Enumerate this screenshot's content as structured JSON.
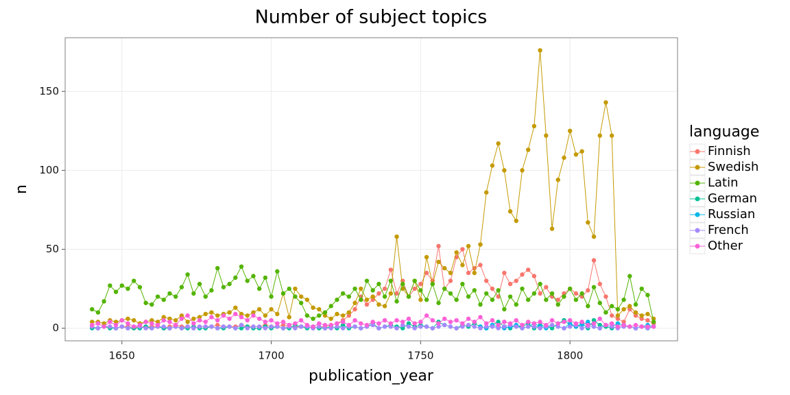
{
  "chart_data": {
    "type": "line",
    "title": "Number of subject topics",
    "x_label": "publication_year",
    "y_label": "n",
    "legend_title": "language",
    "xlim": [
      1631,
      1836
    ],
    "ylim": [
      -8,
      184
    ],
    "xticks": [
      1650,
      1700,
      1750,
      1800
    ],
    "yticks": [
      0,
      50,
      100,
      150
    ],
    "grid": true,
    "legend_position": "right",
    "x": [
      1640,
      1642,
      1644,
      1646,
      1648,
      1650,
      1652,
      1654,
      1656,
      1658,
      1660,
      1662,
      1664,
      1666,
      1668,
      1670,
      1672,
      1674,
      1676,
      1678,
      1680,
      1682,
      1684,
      1686,
      1688,
      1690,
      1692,
      1694,
      1696,
      1698,
      1700,
      1702,
      1704,
      1706,
      1708,
      1710,
      1712,
      1714,
      1716,
      1718,
      1720,
      1722,
      1724,
      1726,
      1728,
      1730,
      1732,
      1734,
      1736,
      1738,
      1740,
      1742,
      1744,
      1746,
      1748,
      1750,
      1752,
      1754,
      1756,
      1758,
      1760,
      1762,
      1764,
      1766,
      1768,
      1770,
      1772,
      1774,
      1776,
      1778,
      1780,
      1782,
      1784,
      1786,
      1788,
      1790,
      1792,
      1794,
      1796,
      1798,
      1800,
      1802,
      1804,
      1806,
      1808,
      1810,
      1812,
      1814,
      1816,
      1818,
      1820,
      1822,
      1824,
      1826,
      1828
    ],
    "series": [
      {
        "name": "Finnish",
        "color": "#F8766D",
        "values": [
          1,
          0,
          1,
          1,
          0,
          1,
          1,
          0,
          1,
          1,
          1,
          1,
          0,
          1,
          2,
          1,
          1,
          0,
          1,
          1,
          1,
          2,
          1,
          1,
          1,
          2,
          1,
          1,
          1,
          2,
          1,
          1,
          2,
          1,
          1,
          1,
          1,
          0,
          1,
          1,
          2,
          3,
          5,
          8,
          12,
          20,
          15,
          18,
          22,
          25,
          37,
          22,
          30,
          20,
          25,
          28,
          35,
          30,
          52,
          25,
          30,
          45,
          50,
          35,
          38,
          40,
          30,
          25,
          20,
          35,
          28,
          30,
          34,
          37,
          33,
          22,
          26,
          20,
          18,
          22,
          25,
          22,
          20,
          24,
          43,
          28,
          20,
          8,
          6,
          4,
          12,
          8,
          6,
          5,
          3
        ]
      },
      {
        "name": "Swedish",
        "color": "#C49A00",
        "values": [
          4,
          4,
          3,
          5,
          4,
          5,
          6,
          5,
          3,
          4,
          5,
          4,
          7,
          6,
          5,
          8,
          4,
          6,
          7,
          9,
          10,
          8,
          9,
          10,
          13,
          9,
          8,
          10,
          12,
          8,
          12,
          9,
          22,
          7,
          25,
          20,
          18,
          13,
          12,
          8,
          6,
          9,
          8,
          10,
          16,
          25,
          18,
          20,
          15,
          14,
          22,
          58,
          25,
          20,
          30,
          18,
          45,
          28,
          42,
          38,
          35,
          48,
          40,
          52,
          35,
          53,
          86,
          103,
          117,
          100,
          74,
          68,
          100,
          113,
          128,
          176,
          122,
          63,
          94,
          108,
          125,
          110,
          112,
          67,
          58,
          122,
          143,
          122,
          8,
          12,
          14,
          10,
          8,
          9,
          6
        ]
      },
      {
        "name": "Latin",
        "color": "#53B400",
        "values": [
          12,
          10,
          17,
          27,
          23,
          27,
          25,
          30,
          26,
          16,
          15,
          20,
          18,
          22,
          20,
          26,
          34,
          22,
          28,
          20,
          24,
          38,
          26,
          28,
          32,
          39,
          30,
          33,
          25,
          32,
          20,
          36,
          22,
          25,
          20,
          16,
          8,
          6,
          8,
          10,
          14,
          18,
          22,
          20,
          25,
          18,
          30,
          24,
          28,
          20,
          30,
          17,
          28,
          20,
          30,
          24,
          18,
          28,
          16,
          25,
          22,
          18,
          28,
          20,
          24,
          15,
          22,
          18,
          24,
          12,
          20,
          15,
          25,
          18,
          22,
          28,
          18,
          22,
          15,
          20,
          25,
          18,
          22,
          14,
          26,
          16,
          10,
          14,
          12,
          18,
          33,
          15,
          25,
          21,
          4
        ]
      },
      {
        "name": "German",
        "color": "#00C094",
        "values": [
          0,
          0,
          1,
          0,
          0,
          1,
          0,
          0,
          0,
          1,
          0,
          1,
          0,
          0,
          1,
          0,
          0,
          1,
          0,
          0,
          1,
          0,
          0,
          1,
          0,
          0,
          1,
          0,
          0,
          1,
          0,
          1,
          0,
          0,
          2,
          1,
          0,
          1,
          0,
          0,
          1,
          0,
          2,
          0,
          1,
          0,
          1,
          3,
          0,
          1,
          2,
          1,
          0,
          3,
          1,
          2,
          1,
          0,
          4,
          2,
          1,
          0,
          2,
          1,
          3,
          1,
          0,
          2,
          4,
          1,
          0,
          2,
          1,
          3,
          0,
          2,
          1,
          0,
          3,
          5,
          2,
          1,
          3,
          0,
          5,
          2,
          1,
          0,
          1,
          2,
          1,
          0,
          1,
          0,
          1
        ]
      },
      {
        "name": "Russian",
        "color": "#00B6EB",
        "values": [
          null,
          null,
          null,
          null,
          null,
          null,
          null,
          null,
          null,
          null,
          null,
          null,
          null,
          null,
          null,
          null,
          null,
          null,
          null,
          null,
          null,
          null,
          null,
          null,
          null,
          null,
          null,
          null,
          null,
          null,
          null,
          null,
          null,
          null,
          null,
          null,
          null,
          null,
          null,
          null,
          null,
          null,
          null,
          null,
          null,
          null,
          null,
          null,
          null,
          null,
          null,
          null,
          null,
          null,
          null,
          null,
          null,
          null,
          null,
          null,
          null,
          null,
          null,
          null,
          null,
          1,
          0,
          2,
          1,
          0,
          1,
          2,
          0,
          1,
          3,
          1,
          0,
          2,
          1,
          0,
          3,
          1,
          2,
          4,
          1,
          0,
          2,
          1,
          3,
          2,
          1,
          0,
          1,
          2,
          1
        ]
      },
      {
        "name": "French",
        "color": "#A58AFF",
        "values": [
          1,
          0,
          1,
          1,
          0,
          1,
          0,
          1,
          1,
          0,
          0,
          1,
          1,
          0,
          1,
          0,
          1,
          0,
          1,
          1,
          1,
          0,
          1,
          1,
          0,
          2,
          0,
          1,
          1,
          0,
          1,
          1,
          0,
          1,
          0,
          1,
          1,
          0,
          1,
          0,
          0,
          1,
          0,
          1,
          1,
          0,
          1,
          2,
          0,
          1,
          1,
          0,
          2,
          1,
          0,
          1,
          1,
          0,
          1,
          2,
          1,
          0,
          1,
          2,
          1,
          0,
          1,
          1,
          0,
          1,
          2,
          1,
          0,
          1,
          1,
          0,
          1,
          2,
          1,
          0,
          1,
          2,
          0,
          1,
          1,
          0,
          2,
          1,
          0,
          1,
          1,
          0,
          1,
          0,
          1
        ]
      },
      {
        "name": "Other",
        "color": "#FB61D7",
        "values": [
          2,
          3,
          1,
          4,
          2,
          5,
          3,
          1,
          2,
          4,
          3,
          2,
          5,
          4,
          2,
          6,
          8,
          3,
          5,
          4,
          7,
          5,
          8,
          6,
          9,
          7,
          5,
          8,
          6,
          4,
          5,
          3,
          4,
          2,
          3,
          5,
          2,
          1,
          3,
          2,
          2,
          3,
          4,
          2,
          5,
          3,
          2,
          4,
          3,
          5,
          3,
          5,
          4,
          6,
          3,
          4,
          8,
          5,
          3,
          6,
          4,
          5,
          3,
          6,
          4,
          7,
          3,
          5,
          2,
          4,
          3,
          5,
          2,
          4,
          3,
          4,
          2,
          5,
          3,
          4,
          5,
          3,
          4,
          2,
          3,
          6,
          2,
          3,
          1,
          2,
          1,
          2,
          1,
          1,
          1
        ]
      }
    ]
  }
}
